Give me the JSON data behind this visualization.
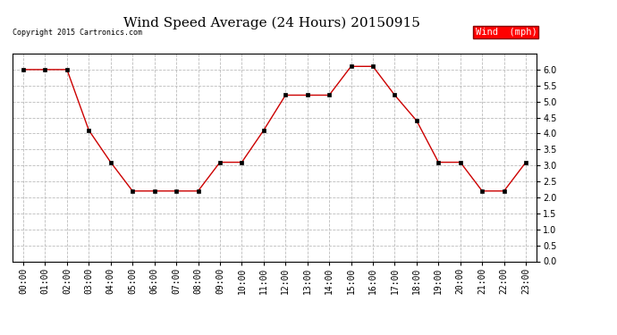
{
  "title": "Wind Speed Average (24 Hours) 20150915",
  "copyright_text": "Copyright 2015 Cartronics.com",
  "legend_label": "Wind  (mph)",
  "legend_bg": "#ff0000",
  "legend_text_color": "#ffffff",
  "x_labels": [
    "00:00",
    "01:00",
    "02:00",
    "03:00",
    "04:00",
    "05:00",
    "06:00",
    "07:00",
    "08:00",
    "09:00",
    "10:00",
    "11:00",
    "12:00",
    "13:00",
    "14:00",
    "15:00",
    "16:00",
    "17:00",
    "18:00",
    "19:00",
    "20:00",
    "21:00",
    "22:00",
    "23:00"
  ],
  "wind_values": [
    6.0,
    6.0,
    6.0,
    4.1,
    3.1,
    2.2,
    2.2,
    2.2,
    2.2,
    3.1,
    3.1,
    4.1,
    5.2,
    5.2,
    5.2,
    6.1,
    6.1,
    5.2,
    4.4,
    3.1,
    3.1,
    2.2,
    2.2,
    3.1
  ],
  "line_color": "#cc0000",
  "marker_color": "#000000",
  "bg_color": "#ffffff",
  "grid_color": "#bbbbbb",
  "ylim": [
    0.0,
    6.5
  ],
  "yticks": [
    0.0,
    0.5,
    1.0,
    1.5,
    2.0,
    2.5,
    3.0,
    3.5,
    4.0,
    4.5,
    5.0,
    5.5,
    6.0
  ],
  "title_fontsize": 11,
  "tick_fontsize": 7,
  "copyright_fontsize": 6
}
